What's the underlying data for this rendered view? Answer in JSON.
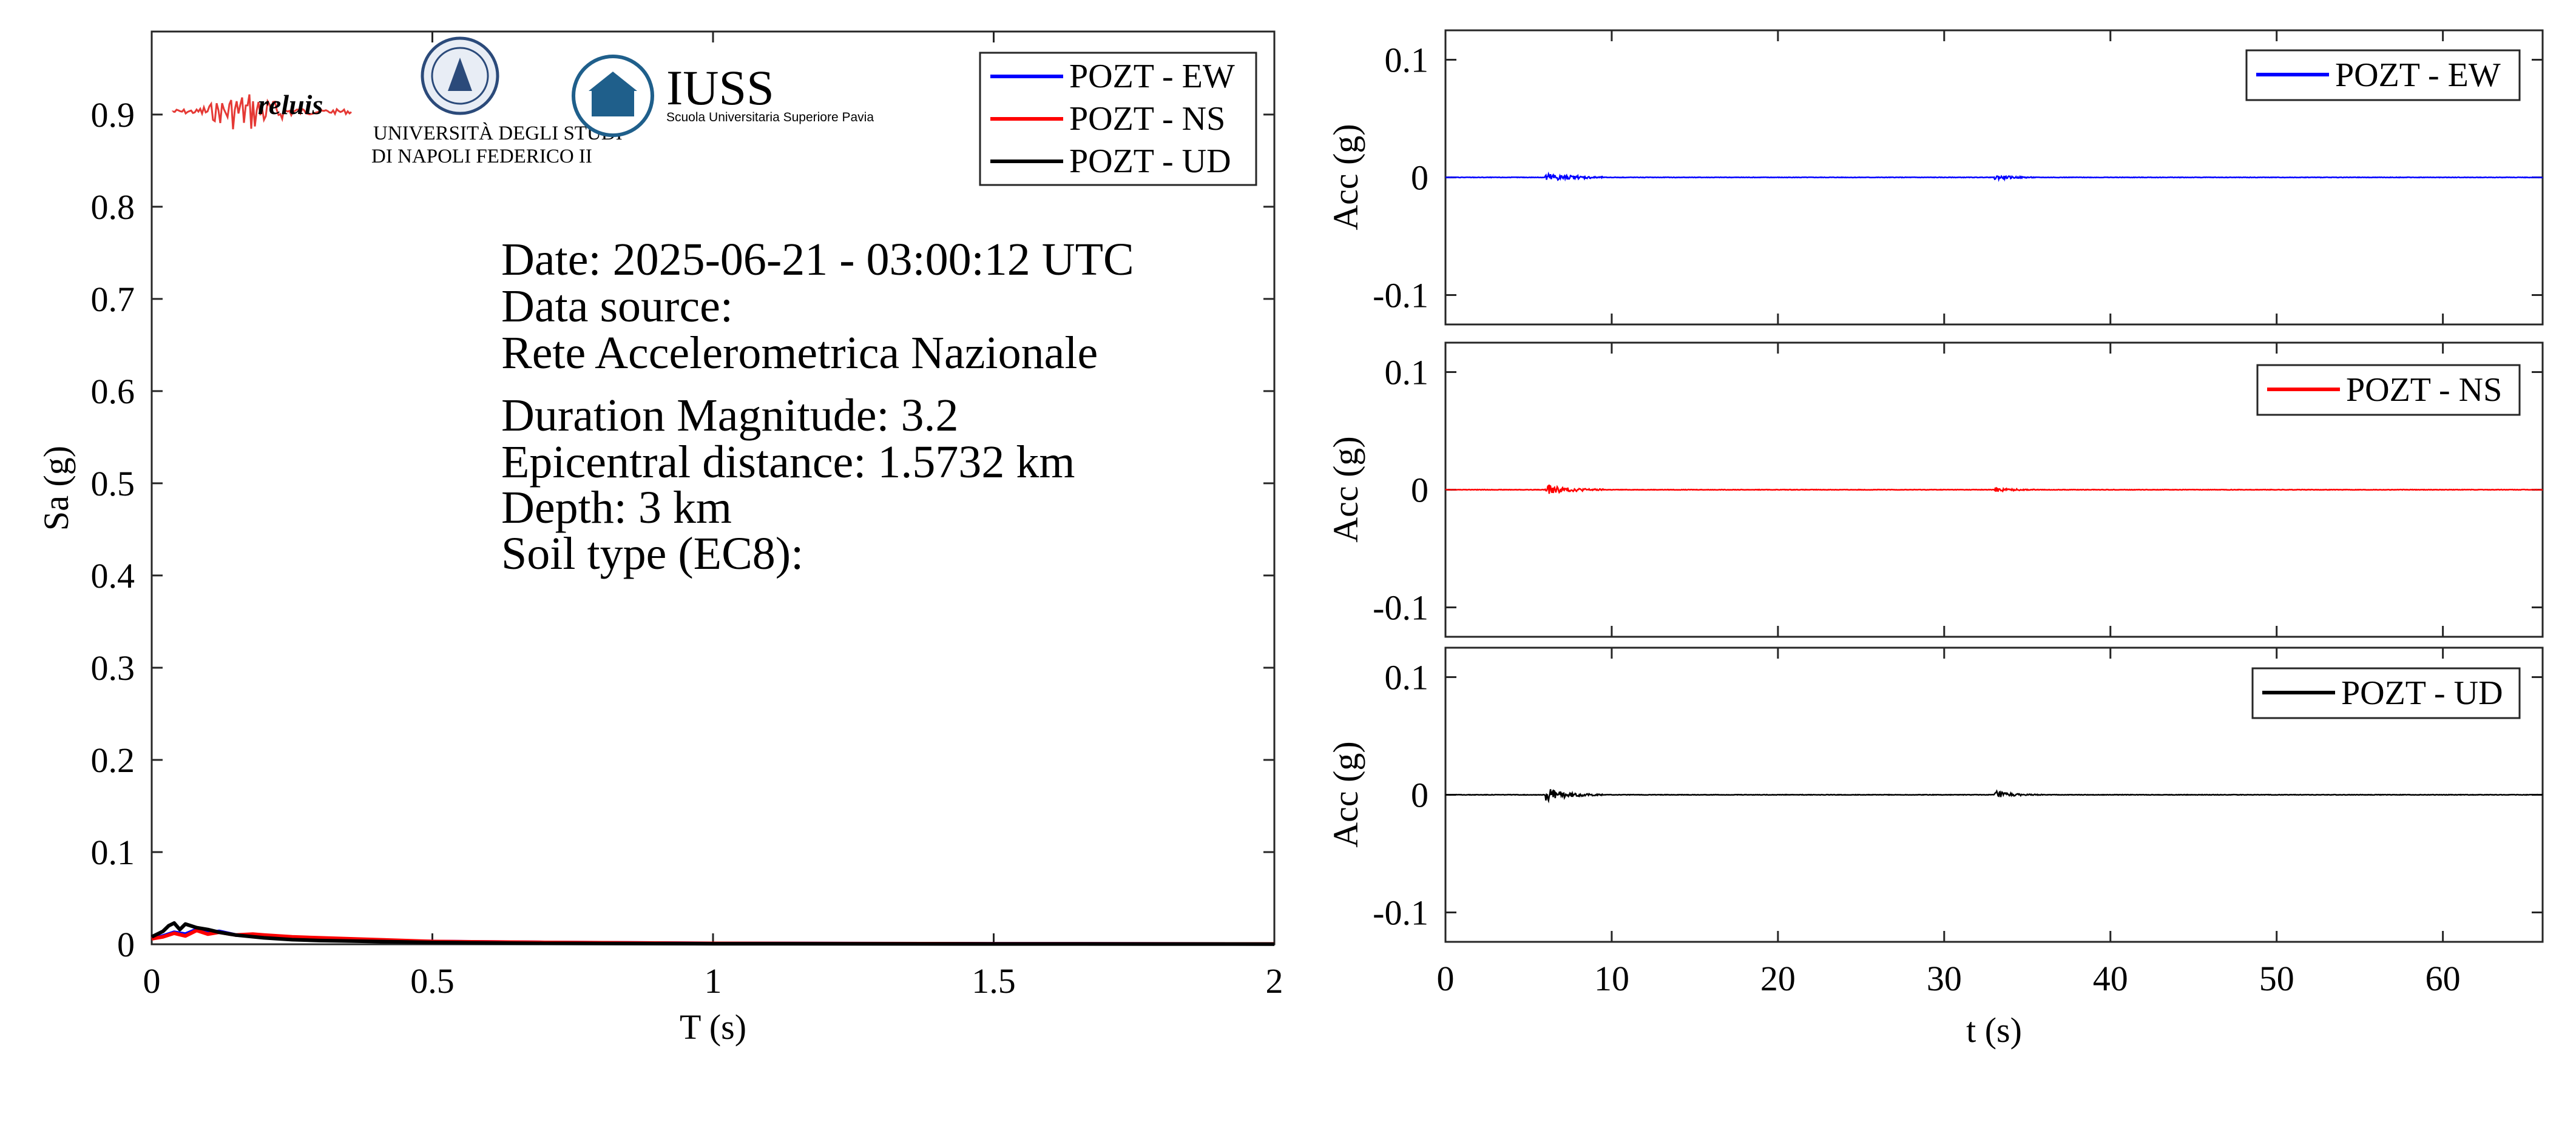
{
  "colors": {
    "ew": "#0000ff",
    "ns": "#ff0000",
    "ud": "#000000",
    "iuss": "#1f5f8b",
    "reluis": "#1a237e"
  },
  "logos": {
    "reluis": "reluis",
    "unina_line1": "UNIVERSITÀ DEGLI STUDI",
    "unina_line2": "DI NAPOLI FEDERICO II",
    "iuss_title": "IUSS",
    "iuss_sub": "Scuola Universitaria Superiore Pavia"
  },
  "info": {
    "date": "Date: 2025-06-21 - 03:00:12 UTC",
    "source_label": "Data source:",
    "source_value": "Rete Accelerometrica Nazionale",
    "magnitude": "Duration Magnitude: 3.2",
    "distance": "Epicentral distance: 1.5732 km",
    "depth": "Depth: 3 km",
    "soil": "Soil type (EC8):"
  },
  "chart_data": [
    {
      "type": "line",
      "xlabel": "T (s)",
      "ylabel": "Sa (g)",
      "xlim": [
        0,
        2
      ],
      "ylim": [
        0,
        0.99
      ],
      "xticks": [
        0,
        0.5,
        1,
        1.5,
        2
      ],
      "xtick_labels": [
        "0",
        "0.5",
        "1",
        "1.5",
        "2"
      ],
      "yticks": [
        0,
        0.1,
        0.2,
        0.3,
        0.4,
        0.5,
        0.6,
        0.7,
        0.8,
        0.9
      ],
      "ytick_labels": [
        "0",
        "0.1",
        "0.2",
        "0.3",
        "0.4",
        "0.5",
        "0.6",
        "0.7",
        "0.8",
        "0.9"
      ],
      "legend_position": "top-right",
      "series": [
        {
          "name": "POZT - EW",
          "color": "#0000ff",
          "x": [
            0,
            0.02,
            0.04,
            0.06,
            0.08,
            0.1,
            0.12,
            0.15,
            0.2,
            0.25,
            0.3,
            0.4,
            0.5,
            0.7,
            1.0,
            1.5,
            2.0
          ],
          "y": [
            0.006,
            0.009,
            0.013,
            0.011,
            0.016,
            0.012,
            0.014,
            0.01,
            0.008,
            0.007,
            0.006,
            0.004,
            0.003,
            0.002,
            0.001,
            0.0005,
            0.0003
          ]
        },
        {
          "name": "POZT - NS",
          "color": "#ff0000",
          "x": [
            0,
            0.02,
            0.04,
            0.06,
            0.08,
            0.1,
            0.12,
            0.15,
            0.18,
            0.2,
            0.25,
            0.3,
            0.4,
            0.5,
            0.7,
            1.0,
            1.5,
            2.0
          ],
          "y": [
            0.006,
            0.008,
            0.012,
            0.009,
            0.015,
            0.011,
            0.013,
            0.01,
            0.011,
            0.01,
            0.008,
            0.007,
            0.005,
            0.003,
            0.002,
            0.001,
            0.0005,
            0.0003
          ]
        },
        {
          "name": "POZT - UD",
          "color": "#000000",
          "x": [
            0,
            0.02,
            0.03,
            0.04,
            0.05,
            0.06,
            0.07,
            0.08,
            0.1,
            0.12,
            0.15,
            0.2,
            0.25,
            0.3,
            0.4,
            0.5,
            0.7,
            1.0,
            1.5,
            2.0
          ],
          "y": [
            0.008,
            0.014,
            0.02,
            0.023,
            0.016,
            0.022,
            0.02,
            0.018,
            0.016,
            0.013,
            0.01,
            0.007,
            0.005,
            0.004,
            0.003,
            0.002,
            0.001,
            0.0006,
            0.0003,
            0.0002
          ]
        }
      ]
    },
    {
      "type": "line",
      "xlabel": "",
      "ylabel": "Acc (g)",
      "xlim": [
        0,
        66
      ],
      "ylim": [
        -0.125,
        0.125
      ],
      "yticks": [
        -0.1,
        0,
        0.1
      ],
      "ytick_labels": [
        "-0.1",
        "0",
        "0.1"
      ],
      "legend_position": "top-right",
      "series": [
        {
          "name": "POZT - EW",
          "color": "#0000ff",
          "bursts": [
            {
              "start": 6.0,
              "end": 9.5,
              "peak": 0.004,
              "decay": 1.5
            },
            {
              "start": 33.0,
              "end": 35.5,
              "peak": 0.002,
              "decay": 1.0
            }
          ]
        }
      ]
    },
    {
      "type": "line",
      "xlabel": "",
      "ylabel": "Acc (g)",
      "xlim": [
        0,
        66
      ],
      "ylim": [
        -0.125,
        0.125
      ],
      "yticks": [
        -0.1,
        0,
        0.1
      ],
      "ytick_labels": [
        "-0.1",
        "0",
        "0.1"
      ],
      "legend_position": "top-right",
      "series": [
        {
          "name": "POZT - NS",
          "color": "#ff0000",
          "bursts": [
            {
              "start": 6.0,
              "end": 9.5,
              "peak": 0.004,
              "decay": 1.5
            },
            {
              "start": 33.0,
              "end": 35.5,
              "peak": 0.002,
              "decay": 1.0
            }
          ]
        }
      ]
    },
    {
      "type": "line",
      "xlabel": "t (s)",
      "ylabel": "Acc (g)",
      "xlim": [
        0,
        66
      ],
      "ylim": [
        -0.125,
        0.125
      ],
      "xticks": [
        0,
        10,
        20,
        30,
        40,
        50,
        60
      ],
      "xtick_labels": [
        "0",
        "10",
        "20",
        "30",
        "40",
        "50",
        "60"
      ],
      "yticks": [
        -0.1,
        0,
        0.1
      ],
      "ytick_labels": [
        "-0.1",
        "0",
        "0.1"
      ],
      "legend_position": "top-right",
      "series": [
        {
          "name": "POZT - UD",
          "color": "#000000",
          "bursts": [
            {
              "start": 6.0,
              "end": 9.5,
              "peak": 0.006,
              "decay": 1.2
            },
            {
              "start": 33.0,
              "end": 36.0,
              "peak": 0.004,
              "decay": 0.8
            }
          ]
        }
      ]
    }
  ]
}
